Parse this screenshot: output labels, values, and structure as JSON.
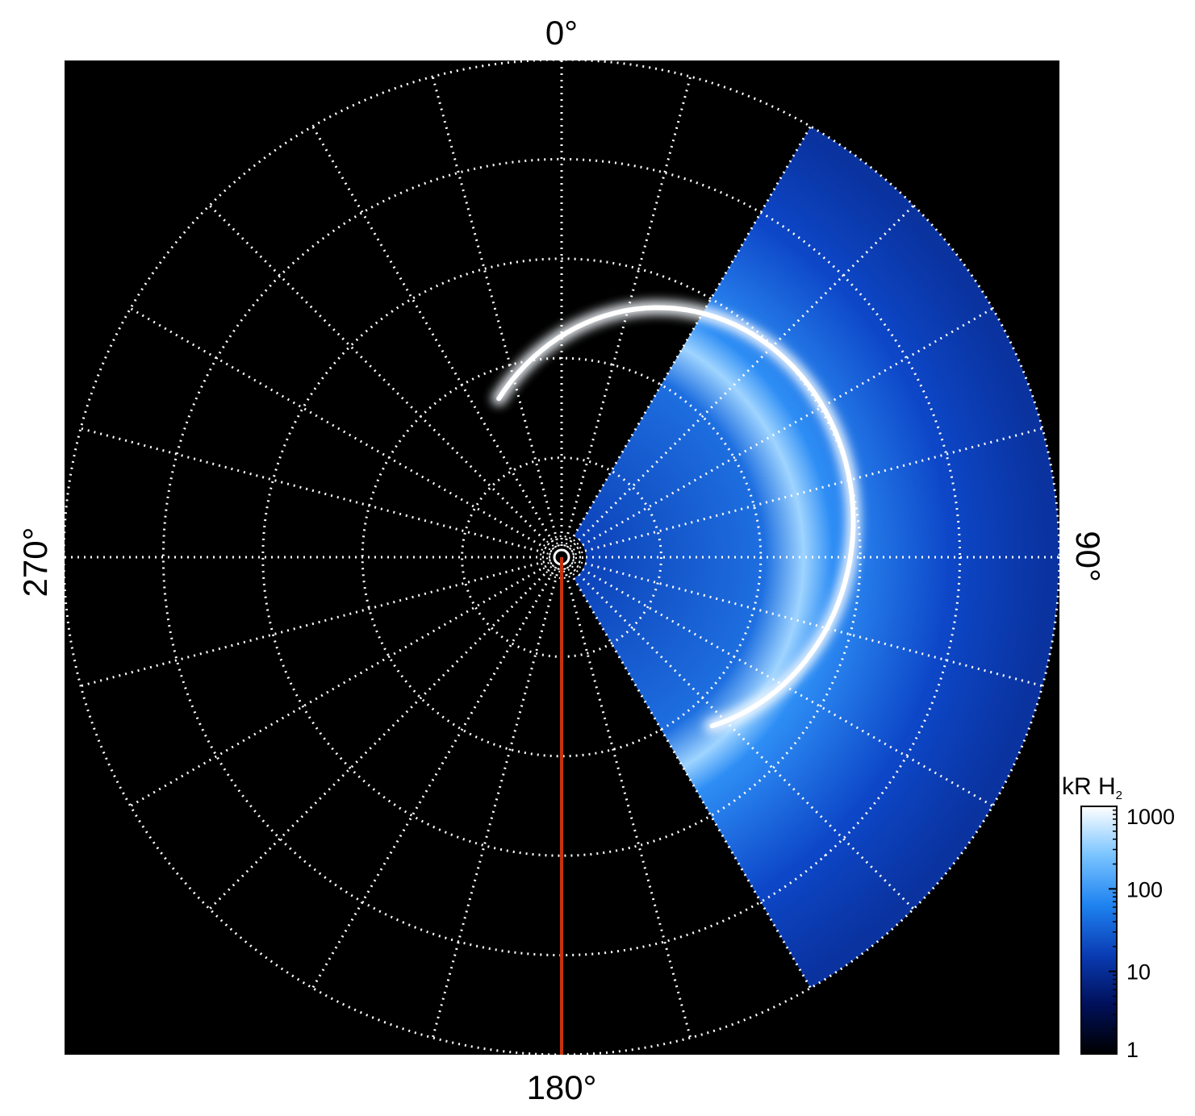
{
  "chart_data": {
    "type": "heatmap",
    "projection": "polar",
    "angle_labels": [
      {
        "angle": 0,
        "text": "0°"
      },
      {
        "angle": 90,
        "text": "90°"
      },
      {
        "angle": 180,
        "text": "180°"
      },
      {
        "angle": 270,
        "text": "270°"
      }
    ],
    "meridian_step_deg": 15,
    "ring_count": 5,
    "grid": true,
    "grid_style": "dotted",
    "background_color": "#000000",
    "grid_color": "#ffffff",
    "marker_line": {
      "angle": 180,
      "color": "#c8320a"
    },
    "observed_sector_deg": [
      30,
      150
    ],
    "colorbar": {
      "label_main": "kR H",
      "label_sub": "2",
      "scale": "log",
      "range": [
        1,
        1000
      ],
      "ticks": [
        {
          "value": 1,
          "label": "1"
        },
        {
          "value": 10,
          "label": "10"
        },
        {
          "value": 100,
          "label": "100"
        },
        {
          "value": 1000,
          "label": "1000"
        }
      ],
      "colors": [
        "#000000",
        "#00105a",
        "#0a3cb4",
        "#1e82f0",
        "#78c3ff",
        "#ffffff"
      ]
    }
  }
}
